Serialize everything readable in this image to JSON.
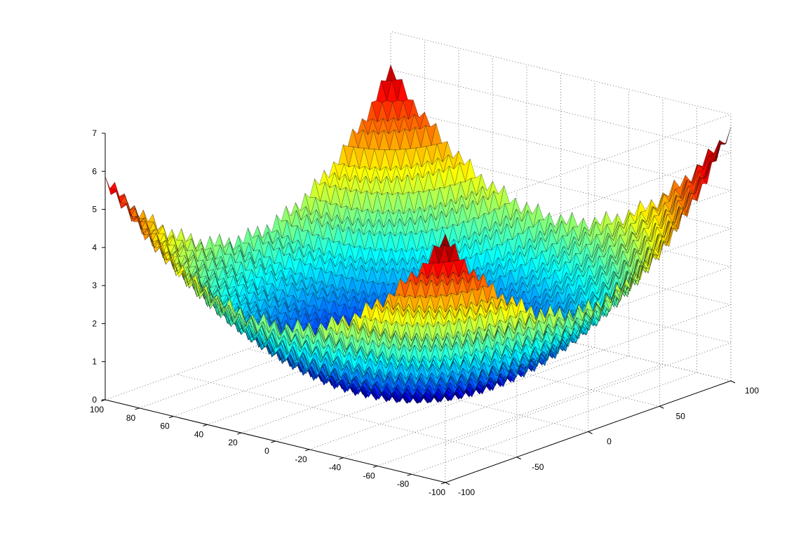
{
  "chart_data": {
    "type": "surface",
    "title": "",
    "xlabel": "",
    "ylabel": "",
    "zlabel": "",
    "grid": true,
    "colormap": "jet",
    "edge_color": "#000000",
    "x_range": [
      -100,
      100
    ],
    "y_range": [
      -100,
      100
    ],
    "zlim": [
      0,
      7
    ],
    "x_ticks": [
      "100",
      "80",
      "60",
      "40",
      "20",
      "0",
      "-20",
      "-40",
      "-60",
      "-80",
      "-100"
    ],
    "y_ticks": [
      "-100",
      "-50",
      "0",
      "50",
      "100"
    ],
    "z_ticks": [
      "0",
      "1",
      "2",
      "3",
      "4",
      "5",
      "6",
      "7"
    ],
    "corner_values": {
      "x100_y100": 6.0,
      "x100_y-100": 5.8,
      "x-100_y100": 6.6,
      "x-100_y-100": 6.4
    },
    "center_value": 0.0
  }
}
